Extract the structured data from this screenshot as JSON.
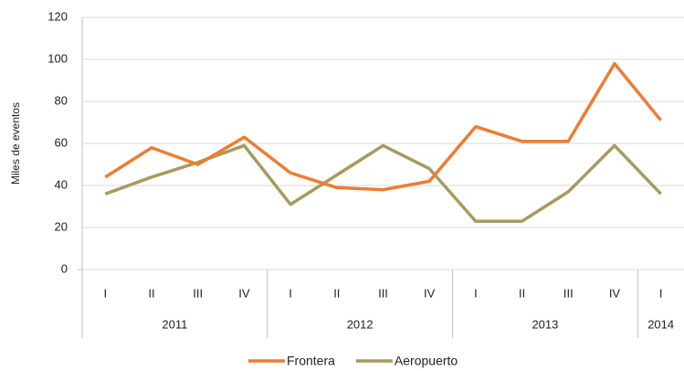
{
  "chart_data": {
    "type": "line",
    "y_label": "Miles de eventos",
    "category_groups": [
      {
        "name": "2011",
        "categories": [
          "I",
          "II",
          "III",
          "IV"
        ]
      },
      {
        "name": "2012",
        "categories": [
          "I",
          "II",
          "III",
          "IV"
        ]
      },
      {
        "name": "2013",
        "categories": [
          "I",
          "II",
          "III",
          "IV"
        ]
      },
      {
        "name": "2014",
        "categories": [
          "I"
        ]
      }
    ],
    "series": [
      {
        "name": "Frontera",
        "color": "#ed7d31",
        "values": [
          44,
          58,
          50,
          63,
          46,
          39,
          38,
          42,
          68,
          61,
          61,
          98,
          71
        ]
      },
      {
        "name": "Aeropuerto",
        "color": "#a89a5e",
        "values": [
          36,
          44,
          51,
          59,
          31,
          45,
          59,
          48,
          23,
          23,
          37,
          59,
          36
        ]
      }
    ],
    "ylim": [
      0,
      120
    ],
    "yticks": [
      0,
      20,
      40,
      60,
      80,
      100,
      120
    ],
    "grid": true,
    "legend": "bottom"
  }
}
